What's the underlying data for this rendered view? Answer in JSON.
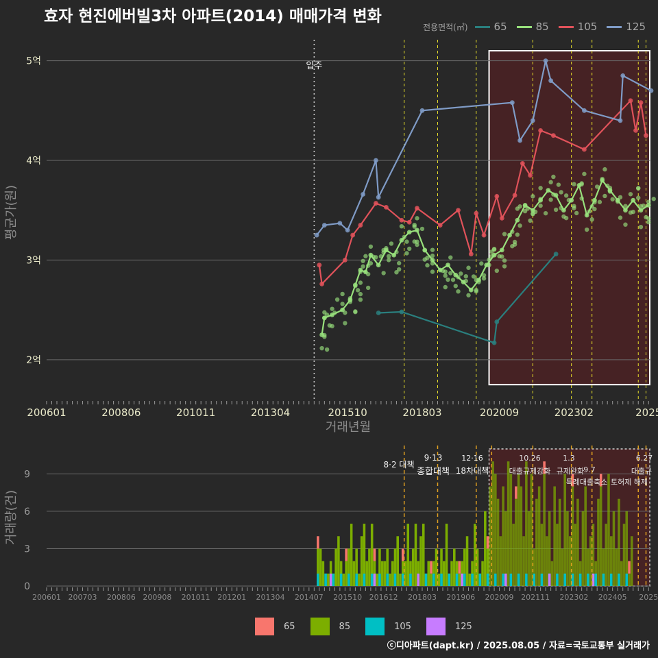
{
  "title": "효자 현진에버빌3차 아파트(2014) 매매가격 변화",
  "legend_title": "전용면적(㎡)",
  "footer": "ⓒ디아파트(dapt.kr) / 2025.08.05 / 자료=국토교통부 실거래가",
  "colors": {
    "65": "#2a7f7e",
    "85": "#98e07c",
    "105": "#e0525a",
    "125": "#7f9bc6"
  },
  "bar_colors": {
    "65": "#f8766d",
    "85": "#7cae00",
    "105": "#00bfc4",
    "125": "#c77cff"
  },
  "chart_data": [
    {
      "type": "line",
      "title": "효자 현진에버빌3차 아파트(2014) 매매가격 변화",
      "xlabel": "거래년월",
      "ylabel": "평균가(원)",
      "x_ticks": [
        "200601",
        "200806",
        "201011",
        "201304",
        "201510",
        "201803",
        "202009",
        "202302",
        "2025"
      ],
      "y_ticks": [
        "2억",
        "3억",
        "4억",
        "5억"
      ],
      "ylim": [
        1.6,
        5.3
      ],
      "xlim": [
        "2006-01",
        "2025-08"
      ],
      "grid": true,
      "legend": "top-right",
      "series": [
        {
          "name": "65",
          "points": [
            [
              "2016-10",
              2.47
            ],
            [
              "2017-07",
              2.48
            ],
            [
              "2020-07",
              2.17
            ],
            [
              "2020-08",
              2.38
            ],
            [
              "2022-07",
              3.06
            ]
          ]
        },
        {
          "name": "85",
          "points": [
            [
              "2014-12",
              2.25
            ],
            [
              "2015-01",
              2.42
            ],
            [
              "2015-04",
              2.45
            ],
            [
              "2015-08",
              2.5
            ],
            [
              "2015-11",
              2.6
            ],
            [
              "2016-01",
              2.75
            ],
            [
              "2016-03",
              2.9
            ],
            [
              "2016-05",
              2.88
            ],
            [
              "2016-07",
              3.05
            ],
            [
              "2016-10",
              2.95
            ],
            [
              "2017-01",
              3.1
            ],
            [
              "2017-04",
              3.05
            ],
            [
              "2017-07",
              3.2
            ],
            [
              "2017-10",
              3.28
            ],
            [
              "2018-01",
              3.3
            ],
            [
              "2018-04",
              3.1
            ],
            [
              "2018-07",
              3.0
            ],
            [
              "2018-10",
              2.9
            ],
            [
              "2019-01",
              2.95
            ],
            [
              "2019-04",
              2.85
            ],
            [
              "2019-07",
              2.78
            ],
            [
              "2019-10",
              2.7
            ],
            [
              "2020-01",
              2.8
            ],
            [
              "2020-04",
              2.95
            ],
            [
              "2020-07",
              3.05
            ],
            [
              "2020-10",
              3.1
            ],
            [
              "2021-01",
              3.25
            ],
            [
              "2021-04",
              3.4
            ],
            [
              "2021-07",
              3.55
            ],
            [
              "2021-10",
              3.5
            ],
            [
              "2022-01",
              3.6
            ],
            [
              "2022-04",
              3.7
            ],
            [
              "2022-07",
              3.65
            ],
            [
              "2022-10",
              3.5
            ],
            [
              "2023-01",
              3.6
            ],
            [
              "2023-04",
              3.75
            ],
            [
              "2023-07",
              3.45
            ],
            [
              "2023-10",
              3.6
            ],
            [
              "2024-01",
              3.8
            ],
            [
              "2024-04",
              3.7
            ],
            [
              "2024-07",
              3.6
            ],
            [
              "2024-10",
              3.5
            ],
            [
              "2025-01",
              3.6
            ],
            [
              "2025-04",
              3.5
            ],
            [
              "2025-07",
              3.55
            ]
          ]
        },
        {
          "name": "105",
          "points": [
            [
              "2014-11",
              2.95
            ],
            [
              "2014-12",
              2.76
            ],
            [
              "2015-09",
              3.0
            ],
            [
              "2015-12",
              3.25
            ],
            [
              "2016-03",
              3.35
            ],
            [
              "2016-09",
              3.57
            ],
            [
              "2017-01",
              3.53
            ],
            [
              "2017-07",
              3.4
            ],
            [
              "2017-10",
              3.38
            ],
            [
              "2018-01",
              3.52
            ],
            [
              "2018-10",
              3.35
            ],
            [
              "2019-05",
              3.5
            ],
            [
              "2019-10",
              3.06
            ],
            [
              "2019-12",
              3.47
            ],
            [
              "2020-03",
              3.25
            ],
            [
              "2020-08",
              3.64
            ],
            [
              "2020-10",
              3.42
            ],
            [
              "2021-03",
              3.65
            ],
            [
              "2021-06",
              3.97
            ],
            [
              "2021-09",
              3.85
            ],
            [
              "2022-01",
              4.3
            ],
            [
              "2022-06",
              4.25
            ],
            [
              "2023-06",
              4.11
            ],
            [
              "2024-12",
              4.6
            ],
            [
              "2025-02",
              4.3
            ],
            [
              "2025-04",
              4.58
            ],
            [
              "2025-06",
              4.25
            ]
          ]
        },
        {
          "name": "125",
          "points": [
            [
              "2014-10",
              3.25
            ],
            [
              "2015-01",
              3.35
            ],
            [
              "2015-07",
              3.37
            ],
            [
              "2015-10",
              3.3
            ],
            [
              "2016-04",
              3.66
            ],
            [
              "2016-09",
              4.0
            ],
            [
              "2016-10",
              3.63
            ],
            [
              "2018-03",
              4.5
            ],
            [
              "2021-02",
              4.58
            ],
            [
              "2021-05",
              4.2
            ],
            [
              "2021-10",
              4.4
            ],
            [
              "2022-03",
              5.0
            ],
            [
              "2022-05",
              4.8
            ],
            [
              "2023-06",
              4.5
            ],
            [
              "2024-08",
              4.4
            ],
            [
              "2024-09",
              4.85
            ],
            [
              "2025-08",
              4.7
            ]
          ]
        }
      ],
      "annotations": [
        "입주"
      ]
    },
    {
      "type": "bar",
      "ylabel": "거래량(건)",
      "x_ticks": [
        "200601",
        "200703",
        "200806",
        "200908",
        "201011",
        "201201",
        "201304",
        "201407",
        "201510",
        "201612",
        "201803",
        "201906",
        "202009",
        "202111",
        "202302",
        "202405",
        "2025"
      ],
      "y_ticks": [
        "0",
        "3",
        "6",
        "9"
      ],
      "ylim": [
        0,
        11
      ],
      "series_names": [
        "65",
        "85",
        "105",
        "125"
      ],
      "monthly_volume_85": [
        3,
        3,
        2,
        1,
        1,
        2,
        1,
        3,
        4,
        2,
        1,
        2,
        3,
        5,
        2,
        3,
        1,
        4,
        5,
        2,
        3,
        5,
        2,
        1,
        3,
        2,
        2,
        3,
        1,
        2,
        3,
        4,
        1,
        2,
        2,
        5,
        2,
        3,
        5,
        2,
        4,
        5,
        1,
        2,
        1,
        2,
        3,
        1,
        3,
        2,
        5,
        1,
        2,
        3,
        2,
        1,
        2,
        3,
        4,
        1,
        2,
        5,
        3,
        1,
        2,
        6,
        3,
        8,
        10,
        9,
        7,
        4,
        8,
        6,
        10,
        9,
        5,
        7,
        9,
        8,
        4,
        10,
        6,
        9,
        3,
        7,
        8,
        5,
        9,
        4,
        6,
        2,
        8,
        5,
        7,
        3,
        9,
        6,
        4,
        8,
        5,
        7,
        2,
        6,
        8,
        3,
        4,
        5,
        2,
        7,
        8,
        3,
        5,
        9,
        4,
        6,
        3,
        7,
        2,
        5,
        6,
        1,
        4
      ],
      "events": [
        {
          "date": "8·2 대책"
        },
        {
          "date": "9·13",
          "label": "종합대책"
        },
        {
          "date": "12·16",
          "label": "18차대책"
        },
        {
          "date": "10.26",
          "label": "대출규제강화"
        },
        {
          "date": "1.3",
          "label": "규제완화"
        },
        {
          "date": "9.7",
          "label": "특례대출축소"
        },
        {
          "label": "토허제 해제"
        },
        {
          "date": "6.27",
          "label": "대출규"
        }
      ]
    }
  ]
}
